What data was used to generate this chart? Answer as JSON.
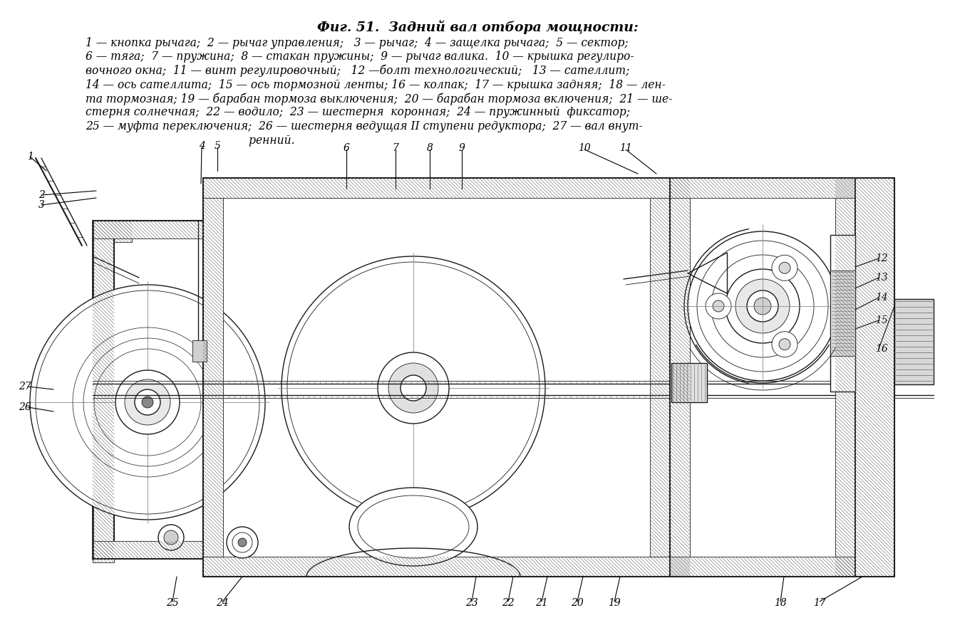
{
  "title": "Фиг. 51.  Задний вал отбора мощности:",
  "legend_lines": [
    "1 — кнопка рычага;  2 — рычаг управления;   3 — рычаг;  4 — защелка рычага;  5 — сектор;",
    "6 — тяга;  7 — пружина;  8 — стакан пружины;  9 — рычаг валика.  10 — крышка регулиро-",
    "вочного окна;  11 — винт регулировочный;   12 —болт технологический;   13 — сателлит;",
    "14 — ось сателлита;  15 — ось тормозной ленты; 16 — колпак;  17 — крышка задняя;  18 — лен-",
    "та тормозная; 19 — барабан тормоза выключения;  20 — барабан тормоза включения;  21 — ше-",
    "стерня солнечная;  22 — водило;  23 — шестерня  коронная;  24 — пружинный  фиксатор;",
    "25 — муфта переключения;  26 — шестерня ведущая II ступени редуктора;  27 — вал внут-",
    "                                               ренний."
  ],
  "bg_color": "#ffffff",
  "title_fontsize": 13.5,
  "legend_fontsize": 11.2,
  "diagram_bg": "#f8f8f8",
  "line_color": "#1a1a1a",
  "hatch_color": "#666666",
  "label_positions": {
    "1": [
      55,
      218,
      108,
      248
    ],
    "2": [
      67,
      274,
      147,
      293
    ],
    "3": [
      67,
      285,
      147,
      303
    ],
    "4": [
      283,
      215,
      310,
      235
    ],
    "5": [
      300,
      215,
      325,
      225
    ],
    "6": [
      486,
      215,
      486,
      248
    ],
    "7": [
      558,
      215,
      555,
      244
    ],
    "8": [
      604,
      215,
      600,
      244
    ],
    "9": [
      650,
      215,
      648,
      244
    ],
    "10": [
      818,
      215,
      837,
      244
    ],
    "11": [
      878,
      215,
      897,
      244
    ],
    "12": [
      1226,
      365,
      1145,
      378
    ],
    "13": [
      1226,
      390,
      1145,
      405
    ],
    "14": [
      1226,
      418,
      1145,
      430
    ],
    "15": [
      1226,
      452,
      1145,
      462
    ],
    "16": [
      1226,
      498,
      1180,
      510
    ],
    "17": [
      1152,
      840,
      1148,
      808
    ],
    "18": [
      1096,
      840,
      1090,
      808
    ],
    "19": [
      866,
      840,
      858,
      808
    ],
    "20": [
      812,
      840,
      804,
      808
    ],
    "21": [
      762,
      840,
      754,
      808
    ],
    "22": [
      718,
      840,
      710,
      808
    ],
    "23": [
      666,
      840,
      658,
      808
    ],
    "24": [
      310,
      840,
      318,
      808
    ],
    "25": [
      243,
      840,
      251,
      808
    ],
    "26": [
      46,
      574,
      75,
      581
    ],
    "27": [
      46,
      544,
      75,
      550
    ]
  }
}
